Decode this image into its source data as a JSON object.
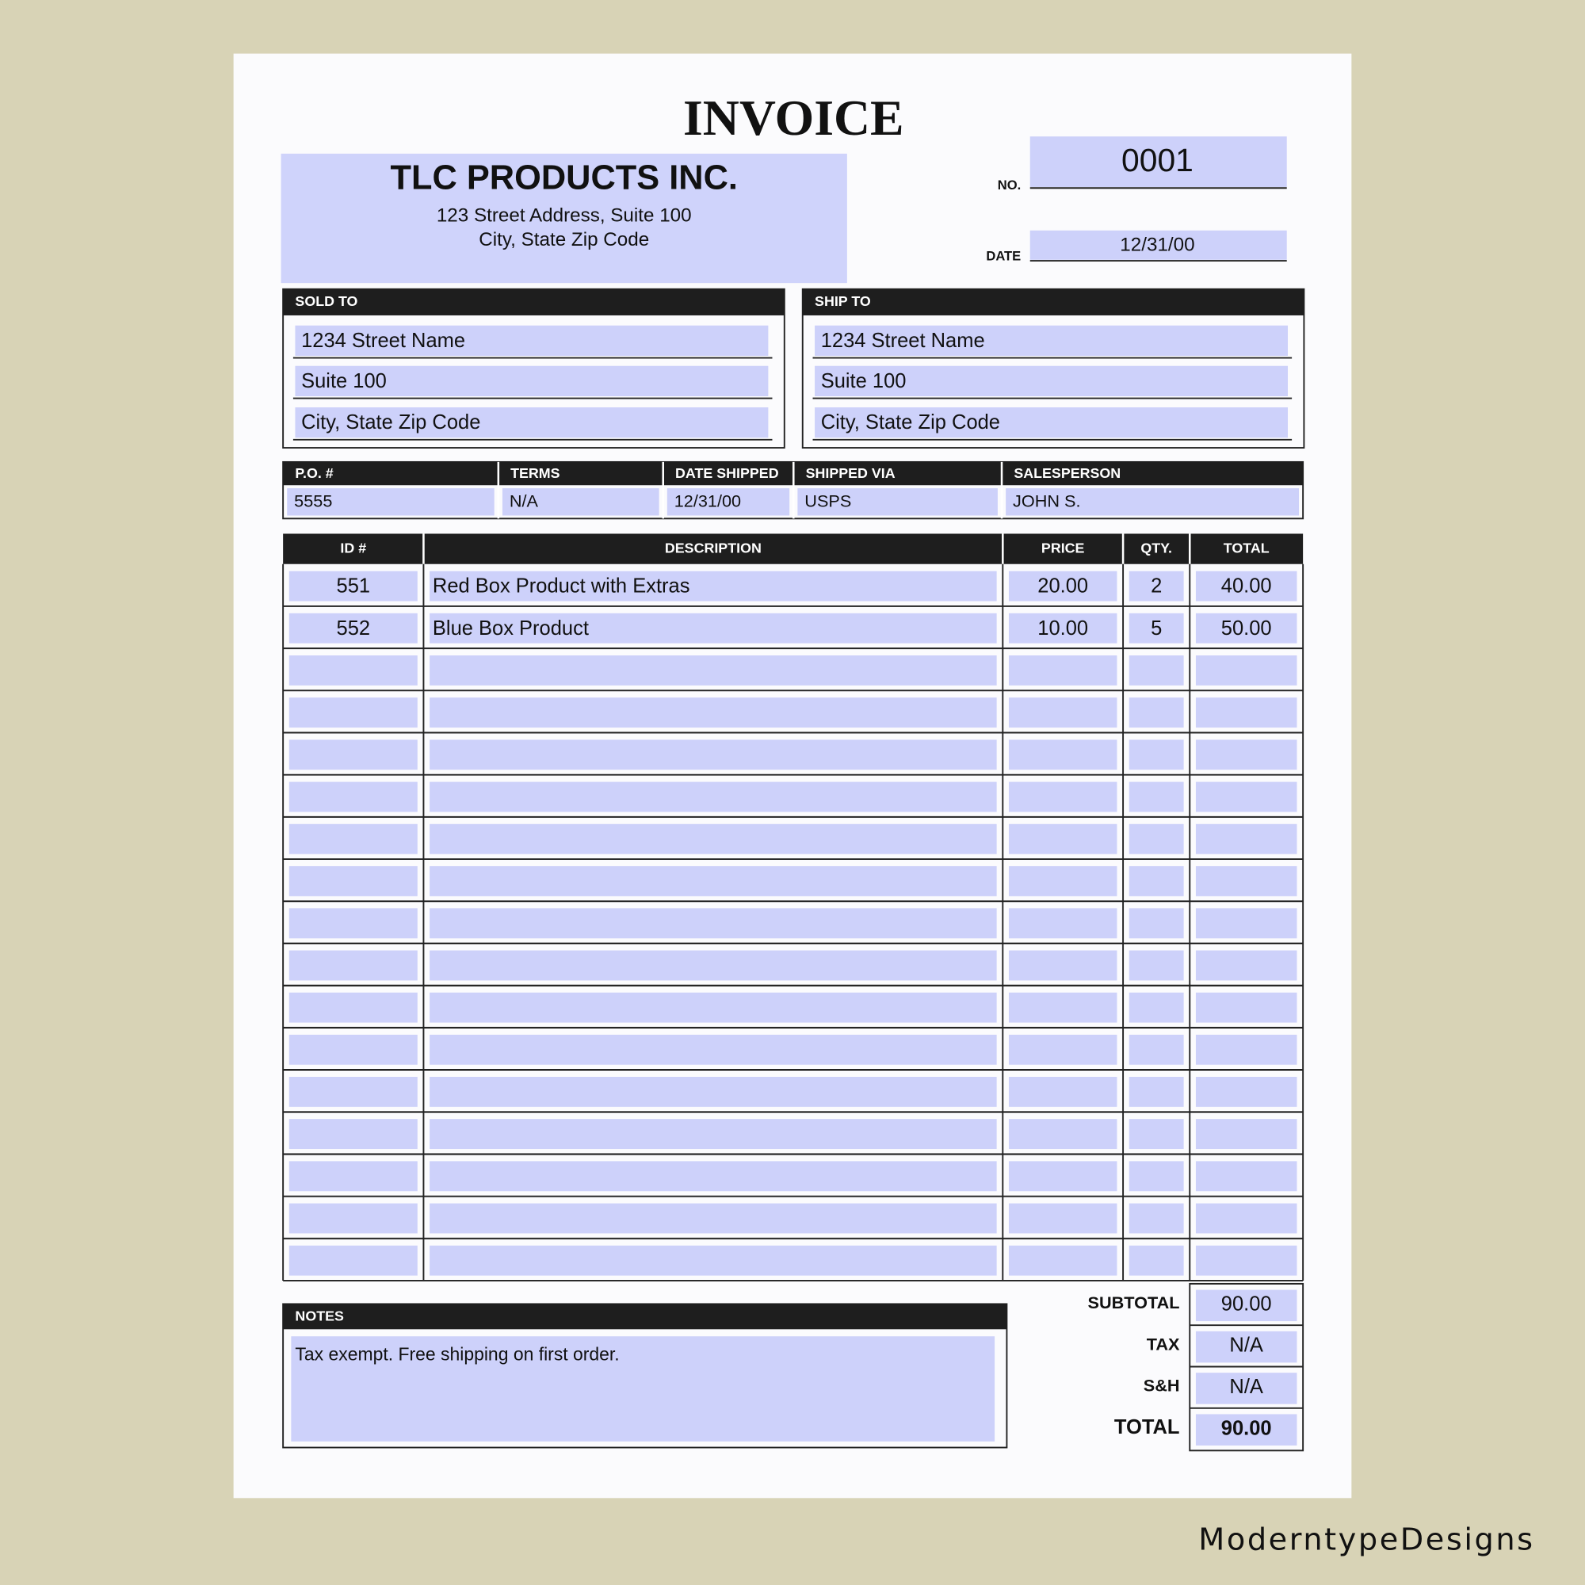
{
  "title": "INVOICE",
  "company": {
    "name": "TLC PRODUCTS INC.",
    "address1": "123 Street Address, Suite 100",
    "address2": "City, State Zip Code"
  },
  "number": {
    "label": "NO.",
    "value": "0001"
  },
  "date": {
    "label": "DATE",
    "value": "12/31/00"
  },
  "sold_to": {
    "label": "SOLD TO",
    "lines": [
      "1234 Street Name",
      "Suite 100",
      "City, State Zip Code"
    ]
  },
  "ship_to": {
    "label": "SHIP TO",
    "lines": [
      "1234 Street Name",
      "Suite 100",
      "City, State Zip Code"
    ]
  },
  "order_info": {
    "headers": [
      "P.O. #",
      "TERMS",
      "DATE SHIPPED",
      "SHIPPED VIA",
      "SALESPERSON"
    ],
    "values": [
      "5555",
      "N/A",
      "12/31/00",
      "USPS",
      "JOHN S."
    ]
  },
  "items": {
    "headers": [
      "ID #",
      "DESCRIPTION",
      "PRICE",
      "QTY.",
      "TOTAL"
    ],
    "rows": [
      [
        "551",
        "Red Box Product with Extras",
        "20.00",
        "2",
        "40.00"
      ],
      [
        "552",
        "Blue Box Product",
        "10.00",
        "5",
        "50.00"
      ]
    ]
  },
  "notes": {
    "label": "NOTES",
    "text": "Tax exempt. Free shipping on first order."
  },
  "totals": [
    {
      "label": "SUBTOTAL",
      "value": "90.00"
    },
    {
      "label": "TAX",
      "value": "N/A"
    },
    {
      "label": "S&H",
      "value": "N/A"
    },
    {
      "label": "TOTAL",
      "value": "90.00"
    }
  ],
  "watermark": "ModerntypeDesigns"
}
